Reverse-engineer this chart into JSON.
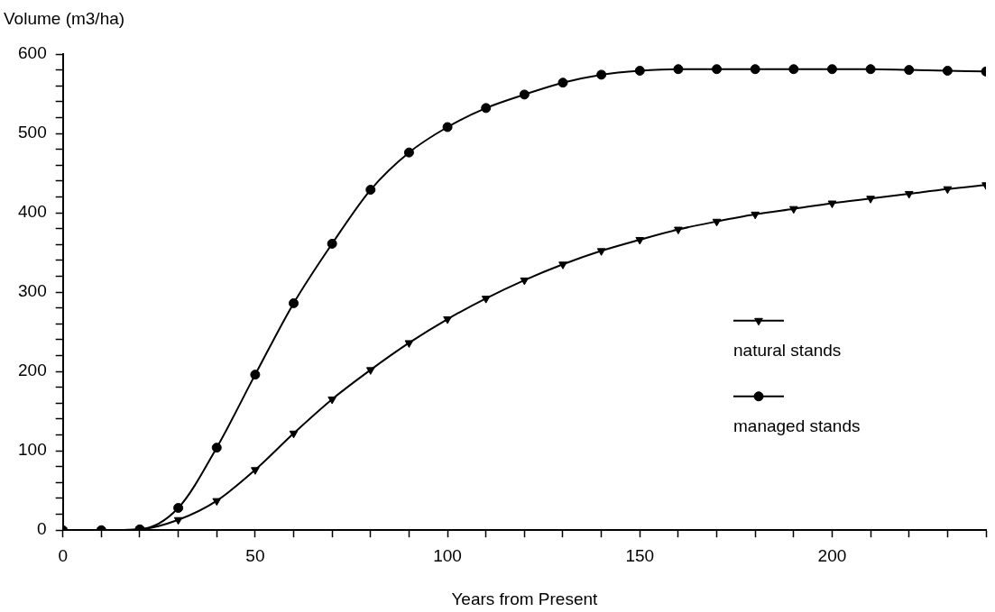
{
  "chart_data": {
    "type": "line",
    "xlabel": "Years from Present",
    "ylabel": "Volume (m3/ha)",
    "x": [
      0,
      10,
      20,
      30,
      40,
      50,
      60,
      70,
      80,
      90,
      100,
      110,
      120,
      130,
      140,
      150,
      160,
      170,
      180,
      190,
      200,
      210,
      220,
      230,
      240
    ],
    "series": [
      {
        "name": "natural stands",
        "color": "#000000",
        "marker": "triangle",
        "values": [
          0,
          0,
          1,
          13,
          37,
          76,
          122,
          165,
          202,
          236,
          266,
          292,
          315,
          335,
          352,
          366,
          379,
          389,
          398,
          405,
          412,
          418,
          424,
          430,
          435
        ]
      },
      {
        "name": "managed stands",
        "color": "#000000",
        "marker": "circle",
        "values": [
          0,
          0,
          1,
          28,
          104,
          196,
          286,
          361,
          429,
          476,
          508,
          532,
          549,
          564,
          574,
          579,
          581,
          581,
          581,
          581,
          581,
          581,
          580,
          579,
          578
        ]
      }
    ],
    "xlim": [
      0,
      240
    ],
    "xticks": [
      0,
      {
        "value": 10,
        "label": null
      },
      {
        "value": 20,
        "label": null
      },
      {
        "value": 30,
        "label": null
      },
      {
        "value": 40,
        "label": null
      },
      50,
      {
        "value": 60,
        "label": null
      },
      {
        "value": 70,
        "label": null
      },
      {
        "value": 80,
        "label": null
      },
      {
        "value": 90,
        "label": null
      },
      100,
      {
        "value": 110,
        "label": null
      },
      {
        "value": 120,
        "label": null
      },
      {
        "value": 130,
        "label": null
      },
      {
        "value": 140,
        "label": null
      },
      150,
      {
        "value": 160,
        "label": null
      },
      {
        "value": 170,
        "label": null
      },
      {
        "value": 180,
        "label": null
      },
      {
        "value": 190,
        "label": null
      },
      200,
      {
        "value": 210,
        "label": null
      },
      {
        "value": 220,
        "label": null
      },
      {
        "value": 230,
        "label": null
      },
      {
        "value": 240,
        "label": null
      }
    ],
    "ylim": [
      0,
      600
    ],
    "yticks": [
      0,
      {
        "value": 20,
        "label": null
      },
      {
        "value": 40,
        "label": null
      },
      {
        "value": 60,
        "label": null
      },
      {
        "value": 80,
        "label": null
      },
      100,
      {
        "value": 120,
        "label": null
      },
      {
        "value": 140,
        "label": null
      },
      {
        "value": 160,
        "label": null
      },
      {
        "value": 180,
        "label": null
      },
      200,
      {
        "value": 220,
        "label": null
      },
      {
        "value": 240,
        "label": null
      },
      {
        "value": 260,
        "label": null
      },
      {
        "value": 280,
        "label": null
      },
      300,
      {
        "value": 320,
        "label": null
      },
      {
        "value": 340,
        "label": null
      },
      {
        "value": 360,
        "label": null
      },
      {
        "value": 380,
        "label": null
      },
      400,
      {
        "value": 420,
        "label": null
      },
      {
        "value": 440,
        "label": null
      },
      {
        "value": 460,
        "label": null
      },
      {
        "value": 480,
        "label": null
      },
      500,
      {
        "value": 520,
        "label": null
      },
      {
        "value": 540,
        "label": null
      },
      {
        "value": 560,
        "label": null
      },
      {
        "value": 580,
        "label": null
      },
      600
    ],
    "grid": false,
    "legend": "right",
    "line_style": "solid"
  }
}
